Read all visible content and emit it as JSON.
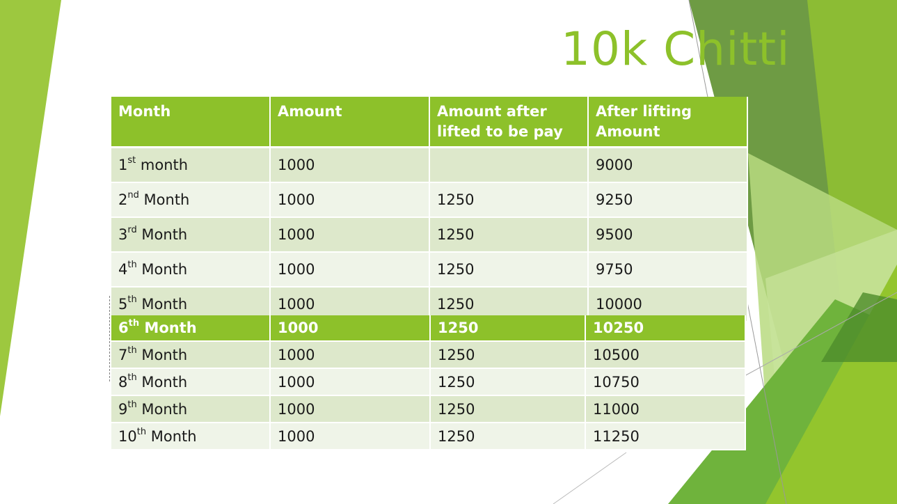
{
  "slide": {
    "title": "10k Chitti",
    "colors": {
      "accent": "#8dc12a",
      "row_odd": "#dde8cb",
      "row_even": "#eff4e8"
    }
  },
  "table": {
    "headers": [
      "Month",
      "Amount",
      "Amount after lifted to be pay",
      "After lifting Amount"
    ],
    "rows": [
      {
        "num": "1",
        "suffix": "st",
        "word": " month",
        "amount": "1000",
        "after_lift_pay": "",
        "after_lifting_amount": "9000"
      },
      {
        "num": "2",
        "suffix": "nd",
        "word": " Month",
        "amount": "1000",
        "after_lift_pay": "1250",
        "after_lifting_amount": "9250"
      },
      {
        "num": "3",
        "suffix": "rd",
        "word": " Month",
        "amount": "1000",
        "after_lift_pay": "1250",
        "after_lifting_amount": "9500"
      },
      {
        "num": "4",
        "suffix": "th",
        "word": " Month",
        "amount": "1000",
        "after_lift_pay": "1250",
        "after_lifting_amount": "9750"
      },
      {
        "num": "5",
        "suffix": "th",
        "word": " Month",
        "amount": "1000",
        "after_lift_pay": "1250",
        "after_lifting_amount": "10000"
      }
    ]
  },
  "table2": {
    "rows": [
      {
        "num": "6",
        "suffix": "th",
        "word": " Month",
        "amount": "1000",
        "after_lift_pay": "1250",
        "after_lifting_amount": "10250"
      },
      {
        "num": "7",
        "suffix": "th",
        "word": " Month",
        "amount": "1000",
        "after_lift_pay": "1250",
        "after_lifting_amount": "10500"
      },
      {
        "num": "8",
        "suffix": "th",
        "word": " Month",
        "amount": "1000",
        "after_lift_pay": "1250",
        "after_lifting_amount": "10750"
      },
      {
        "num": "9",
        "suffix": "th",
        "word": " Month",
        "amount": "1000",
        "after_lift_pay": "1250",
        "after_lifting_amount": "11000"
      },
      {
        "num": "10",
        "suffix": "th",
        "word": " Month",
        "amount": "1000",
        "after_lift_pay": "1250",
        "after_lifting_amount": "11250"
      }
    ]
  }
}
